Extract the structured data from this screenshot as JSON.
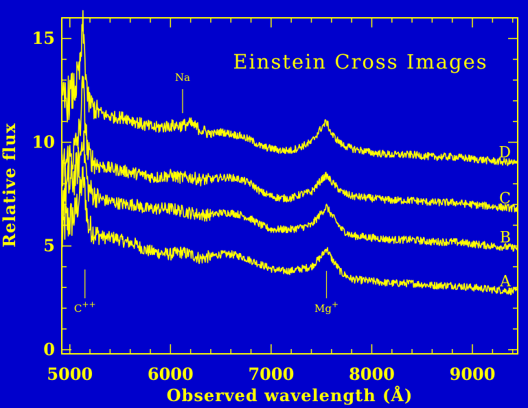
{
  "chart_data": {
    "type": "line",
    "title": "Einstein Cross Images",
    "xlabel": "Observed wavelength (Å)",
    "ylabel": "Relative flux",
    "xlim": [
      4920,
      9450
    ],
    "ylim": [
      -0.2,
      16
    ],
    "xticks": [
      5000,
      6000,
      7000,
      8000,
      9000
    ],
    "xtick_labels": [
      "5000",
      "6000",
      "7000",
      "8000",
      "9000"
    ],
    "yticks": [
      0,
      5,
      10,
      15
    ],
    "ytick_labels": [
      "0",
      "5",
      "10",
      "15"
    ],
    "grid": false,
    "colors": {
      "background": "#0000cc",
      "foreground": "#ffff00"
    },
    "annotations": [
      {
        "label": "C",
        "sup": "++",
        "x": 5150
      },
      {
        "label": "Mg",
        "sup": "+",
        "x": 7550
      },
      {
        "label": "Na",
        "sup": "",
        "x": 6120
      }
    ],
    "series": [
      {
        "name": "A",
        "points": [
          [
            4920,
            5.3
          ],
          [
            4950,
            6.1
          ],
          [
            5000,
            6.2
          ],
          [
            5050,
            6.5
          ],
          [
            5100,
            7.5
          ],
          [
            5130,
            8.3
          ],
          [
            5150,
            7.6
          ],
          [
            5180,
            6.0
          ],
          [
            5250,
            5.6
          ],
          [
            5350,
            5.4
          ],
          [
            5450,
            5.4
          ],
          [
            5550,
            5.2
          ],
          [
            5650,
            5.1
          ],
          [
            5750,
            4.8
          ],
          [
            5850,
            4.7
          ],
          [
            6000,
            4.6
          ],
          [
            6100,
            4.7
          ],
          [
            6200,
            4.6
          ],
          [
            6300,
            4.4
          ],
          [
            6400,
            4.5
          ],
          [
            6500,
            4.6
          ],
          [
            6600,
            4.6
          ],
          [
            6700,
            4.5
          ],
          [
            6800,
            4.3
          ],
          [
            6900,
            4.1
          ],
          [
            7000,
            3.9
          ],
          [
            7100,
            3.8
          ],
          [
            7200,
            3.8
          ],
          [
            7300,
            3.9
          ],
          [
            7400,
            4.0
          ],
          [
            7500,
            4.5
          ],
          [
            7550,
            4.9
          ],
          [
            7600,
            4.4
          ],
          [
            7700,
            3.7
          ],
          [
            7800,
            3.4
          ],
          [
            8000,
            3.3
          ],
          [
            8200,
            3.2
          ],
          [
            8400,
            3.2
          ],
          [
            8600,
            3.1
          ],
          [
            8800,
            3.1
          ],
          [
            9000,
            3.0
          ],
          [
            9200,
            2.9
          ],
          [
            9450,
            2.8
          ]
        ]
      },
      {
        "name": "B",
        "points": [
          [
            4920,
            7.1
          ],
          [
            4950,
            7.7
          ],
          [
            5000,
            8.0
          ],
          [
            5050,
            8.4
          ],
          [
            5100,
            9.2
          ],
          [
            5130,
            10.4
          ],
          [
            5150,
            9.2
          ],
          [
            5180,
            7.8
          ],
          [
            5250,
            7.4
          ],
          [
            5350,
            7.2
          ],
          [
            5450,
            7.1
          ],
          [
            5550,
            7.0
          ],
          [
            5650,
            7.0
          ],
          [
            5750,
            6.8
          ],
          [
            5850,
            6.8
          ],
          [
            6000,
            6.8
          ],
          [
            6100,
            6.7
          ],
          [
            6200,
            6.6
          ],
          [
            6300,
            6.5
          ],
          [
            6400,
            6.5
          ],
          [
            6500,
            6.6
          ],
          [
            6600,
            6.6
          ],
          [
            6700,
            6.5
          ],
          [
            6800,
            6.3
          ],
          [
            6900,
            6.0
          ],
          [
            7000,
            5.8
          ],
          [
            7100,
            5.8
          ],
          [
            7200,
            5.8
          ],
          [
            7300,
            5.9
          ],
          [
            7400,
            6.0
          ],
          [
            7500,
            6.6
          ],
          [
            7550,
            6.9
          ],
          [
            7600,
            6.5
          ],
          [
            7700,
            5.8
          ],
          [
            7800,
            5.5
          ],
          [
            8000,
            5.4
          ],
          [
            8200,
            5.3
          ],
          [
            8400,
            5.3
          ],
          [
            8600,
            5.2
          ],
          [
            8800,
            5.2
          ],
          [
            9000,
            5.1
          ],
          [
            9200,
            5.0
          ],
          [
            9450,
            4.9
          ]
        ]
      },
      {
        "name": "C",
        "points": [
          [
            4920,
            8.5
          ],
          [
            4950,
            8.9
          ],
          [
            5000,
            9.2
          ],
          [
            5050,
            9.6
          ],
          [
            5100,
            10.6
          ],
          [
            5130,
            13.0
          ],
          [
            5150,
            11.2
          ],
          [
            5180,
            9.4
          ],
          [
            5250,
            9.0
          ],
          [
            5350,
            8.8
          ],
          [
            5450,
            8.7
          ],
          [
            5550,
            8.6
          ],
          [
            5650,
            8.5
          ],
          [
            5750,
            8.4
          ],
          [
            5850,
            8.3
          ],
          [
            6000,
            8.4
          ],
          [
            6100,
            8.3
          ],
          [
            6200,
            8.3
          ],
          [
            6300,
            8.2
          ],
          [
            6400,
            8.2
          ],
          [
            6500,
            8.3
          ],
          [
            6600,
            8.3
          ],
          [
            6700,
            8.2
          ],
          [
            6800,
            8.0
          ],
          [
            6900,
            7.6
          ],
          [
            7000,
            7.4
          ],
          [
            7100,
            7.3
          ],
          [
            7200,
            7.3
          ],
          [
            7300,
            7.5
          ],
          [
            7400,
            7.6
          ],
          [
            7500,
            8.2
          ],
          [
            7550,
            8.4
          ],
          [
            7600,
            8.1
          ],
          [
            7700,
            7.6
          ],
          [
            7800,
            7.4
          ],
          [
            8000,
            7.3
          ],
          [
            8200,
            7.2
          ],
          [
            8400,
            7.2
          ],
          [
            8600,
            7.1
          ],
          [
            8800,
            7.1
          ],
          [
            9000,
            7.0
          ],
          [
            9200,
            6.9
          ],
          [
            9450,
            6.8
          ]
        ]
      },
      {
        "name": "D",
        "points": [
          [
            4920,
            11.5
          ],
          [
            4950,
            12.0
          ],
          [
            5000,
            12.2
          ],
          [
            5050,
            12.6
          ],
          [
            5100,
            13.5
          ],
          [
            5130,
            15.6
          ],
          [
            5150,
            14.0
          ],
          [
            5180,
            12.0
          ],
          [
            5250,
            11.6
          ],
          [
            5350,
            11.3
          ],
          [
            5450,
            11.2
          ],
          [
            5550,
            11.2
          ],
          [
            5650,
            11.0
          ],
          [
            5750,
            10.8
          ],
          [
            5850,
            10.7
          ],
          [
            6000,
            10.8
          ],
          [
            6100,
            10.8
          ],
          [
            6200,
            10.9
          ],
          [
            6300,
            10.6
          ],
          [
            6400,
            10.4
          ],
          [
            6500,
            10.5
          ],
          [
            6600,
            10.4
          ],
          [
            6700,
            10.3
          ],
          [
            6800,
            10.1
          ],
          [
            6900,
            9.8
          ],
          [
            7000,
            9.7
          ],
          [
            7100,
            9.6
          ],
          [
            7200,
            9.6
          ],
          [
            7300,
            9.8
          ],
          [
            7400,
            10.0
          ],
          [
            7500,
            10.7
          ],
          [
            7550,
            11.0
          ],
          [
            7600,
            10.4
          ],
          [
            7700,
            9.9
          ],
          [
            7800,
            9.7
          ],
          [
            8000,
            9.5
          ],
          [
            8200,
            9.4
          ],
          [
            8400,
            9.4
          ],
          [
            8600,
            9.3
          ],
          [
            8800,
            9.3
          ],
          [
            9000,
            9.2
          ],
          [
            9200,
            9.1
          ],
          [
            9450,
            9.0
          ]
        ]
      }
    ]
  }
}
